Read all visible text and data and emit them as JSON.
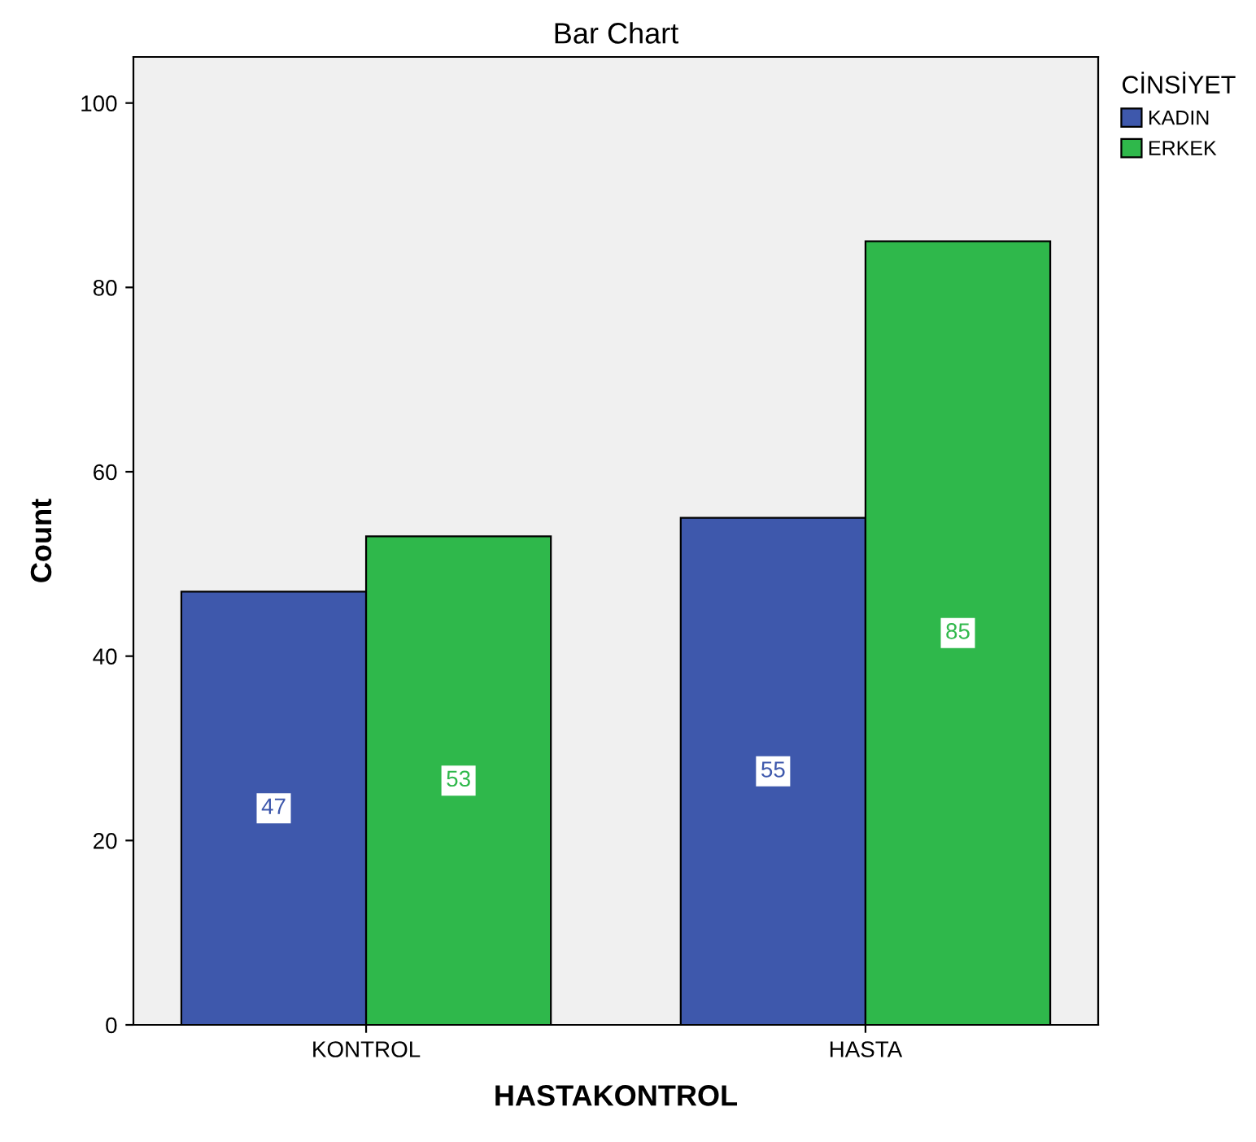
{
  "chart_data": {
    "type": "bar",
    "title": "Bar Chart",
    "xlabel": "HASTAKONTROL",
    "ylabel": "Count",
    "legend_title": "CİNSİYET",
    "categories": [
      "KONTROL",
      "HASTA"
    ],
    "series": [
      {
        "name": "KADIN",
        "color": "#3e58ac",
        "values": [
          47,
          55
        ]
      },
      {
        "name": "ERKEK",
        "color": "#2fb84b",
        "values": [
          53,
          85
        ]
      }
    ],
    "ylim": [
      0,
      105
    ],
    "yticks": [
      0,
      20,
      40,
      60,
      80,
      100
    ],
    "grid": false,
    "legend": "top right",
    "data_labels": true
  }
}
